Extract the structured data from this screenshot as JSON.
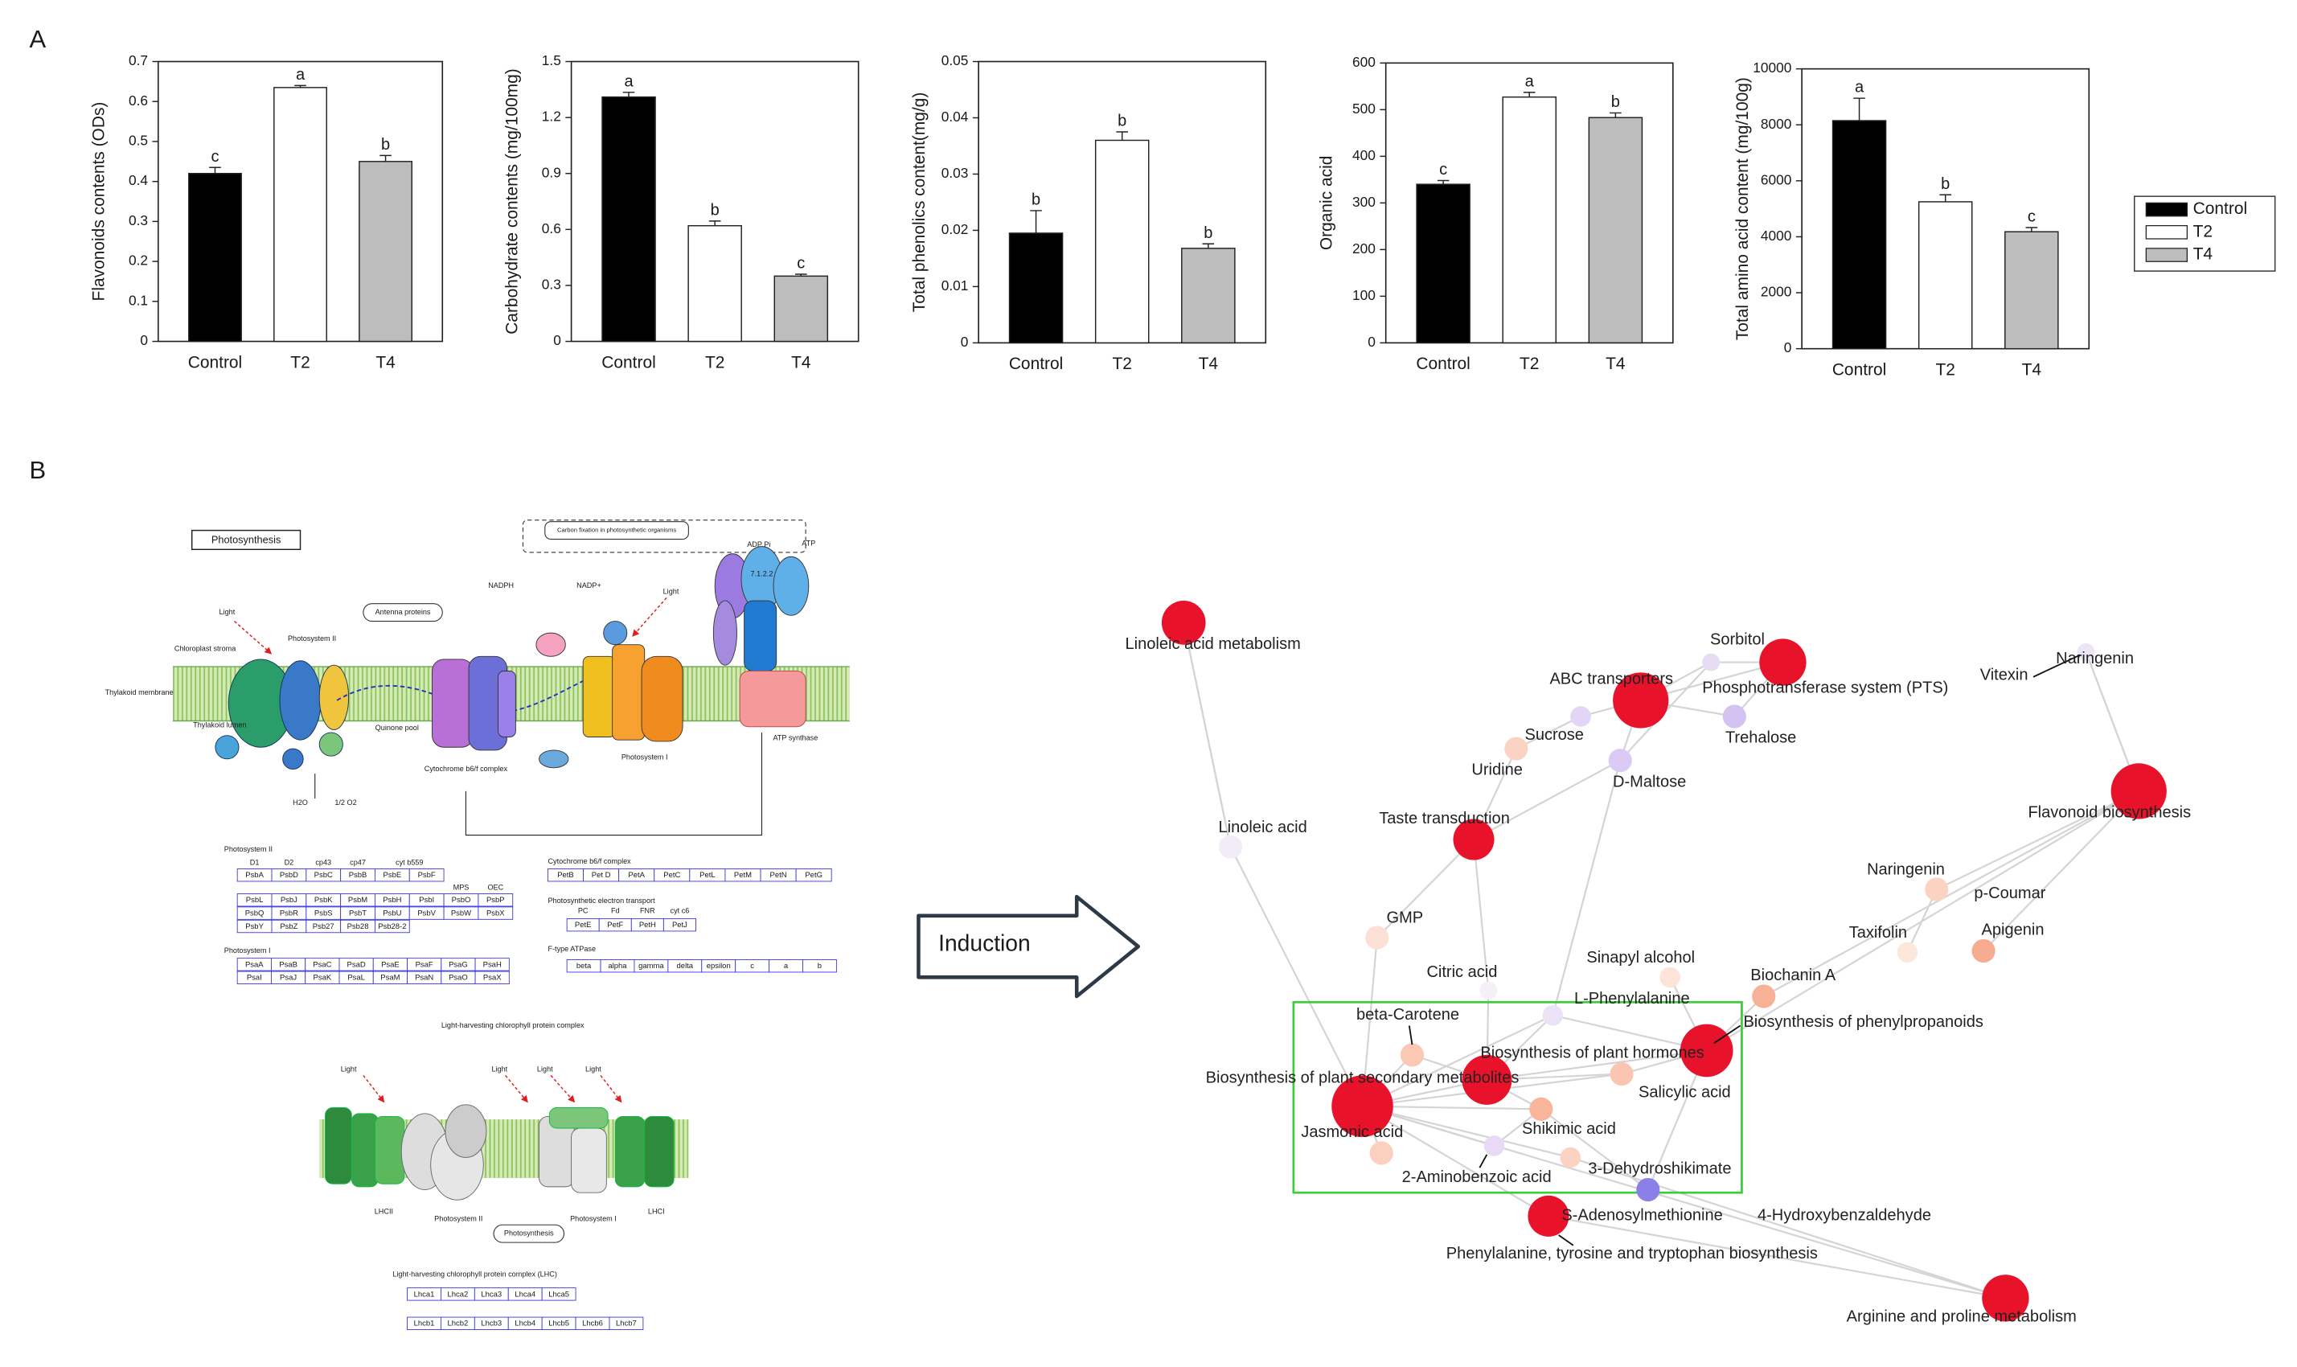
{
  "panel_labels": [
    "A",
    "B"
  ],
  "chart_data": [
    {
      "type": "bar",
      "ylabel": "Flavonoids contents (ODs)",
      "categories": [
        "Control",
        "T2",
        "T4"
      ],
      "values": [
        0.42,
        0.635,
        0.45
      ],
      "errors": [
        0.015,
        0.005,
        0.015
      ],
      "annotations": [
        "c",
        "a",
        "b"
      ],
      "colors": [
        "#000000",
        "#ffffff",
        "#bdbdbd"
      ],
      "ylim": [
        0,
        0.7
      ],
      "yticks": [
        0,
        0.1,
        0.2,
        0.3,
        0.4,
        0.5,
        0.6,
        0.7
      ]
    },
    {
      "type": "bar",
      "ylabel": "Carbohydrate contents (mg/100mg)",
      "categories": [
        "Control",
        "T2",
        "T4"
      ],
      "values": [
        1.31,
        0.62,
        0.35
      ],
      "errors": [
        0.025,
        0.025,
        0.01
      ],
      "annotations": [
        "a",
        "b",
        "c"
      ],
      "colors": [
        "#000000",
        "#ffffff",
        "#bdbdbd"
      ],
      "ylim": [
        0,
        1.5
      ],
      "yticks": [
        0,
        0.3,
        0.6,
        0.9,
        1.2,
        1.5
      ]
    },
    {
      "type": "bar",
      "ylabel": "Total phenolics content(mg/g)",
      "categories": [
        "Control",
        "T2",
        "T4"
      ],
      "values": [
        0.0195,
        0.036,
        0.0168
      ],
      "errors": [
        0.004,
        0.0015,
        0.0008
      ],
      "annotations": [
        "b",
        "b",
        "b"
      ],
      "colors": [
        "#000000",
        "#ffffff",
        "#bdbdbd"
      ],
      "ylim": [
        0,
        0.05
      ],
      "yticks": [
        0,
        0.01,
        0.02,
        0.03,
        0.04,
        0.05
      ]
    },
    {
      "type": "bar",
      "ylabel": "Organic acid",
      "categories": [
        "Control",
        "T2",
        "T4"
      ],
      "values": [
        340,
        527,
        483
      ],
      "errors": [
        8,
        10,
        10
      ],
      "annotations": [
        "c",
        "a",
        "b"
      ],
      "colors": [
        "#000000",
        "#ffffff",
        "#bdbdbd"
      ],
      "ylim": [
        0,
        600
      ],
      "yticks": [
        0,
        100,
        200,
        300,
        400,
        500,
        600
      ]
    },
    {
      "type": "bar",
      "ylabel": "Total amino acid content (mg/100g)",
      "categories": [
        "Control",
        "T2",
        "T4"
      ],
      "values": [
        8150,
        5250,
        4180
      ],
      "errors": [
        800,
        250,
        150
      ],
      "annotations": [
        "a",
        "b",
        "c"
      ],
      "colors": [
        "#000000",
        "#ffffff",
        "#bdbdbd"
      ],
      "ylim": [
        0,
        10000
      ],
      "yticks": [
        0,
        2000,
        4000,
        6000,
        8000,
        10000
      ]
    }
  ],
  "pathway": {
    "title": "Photosynthesis",
    "carbon_fixation": "Carbon fixation in photosynthetic organisms",
    "light": "Light",
    "psii": "Photosystem II",
    "psi": "Photosystem I",
    "antenna": "Antenna proteins",
    "stroma": "Chloroplast stroma",
    "membrane": "Thylakoid membrane",
    "lumen": "Thylakoid lumen",
    "cytb6f": "Cytochrome b6/f complex",
    "atp_synthase": "ATP synthase",
    "nadph": "NADPH",
    "nadp": "NADP+",
    "atp": "ATP",
    "adp": "ADP Pi",
    "h2o": "H2O",
    "o2": "1/2 O2",
    "quinone": "Quinone pool",
    "lhc_title": "Light-harvesting chlorophyll protein complex",
    "lhcii": "LHCII",
    "lhci": "LHCI",
    "tables": [
      {
        "title": "Photosystem II",
        "header": [
          "D1",
          "D2",
          "cp43",
          "cp47",
          "cyt b559"
        ],
        "header2": [
          "MPS",
          "OEC"
        ],
        "rows": [
          [
            "PsbA",
            "PsbD",
            "PsbC",
            "PsbB",
            "PsbE",
            "PsbF"
          ],
          [
            "PsbL",
            "PsbJ",
            "PsbK",
            "PsbM",
            "PsbH",
            "PsbI",
            "PsbO",
            "PsbP"
          ],
          [
            "PsbQ",
            "PsbR",
            "PsbS",
            "PsbT",
            "PsbU",
            "PsbV",
            "PsbW",
            "PsbX"
          ],
          [
            "PsbY",
            "PsbZ",
            "Psb27",
            "Psb28",
            "Psb28-2"
          ]
        ]
      },
      {
        "title": "Cytochrome b6/f complex",
        "rows": [
          [
            "PetB",
            "Pet D",
            "PetA",
            "PetC",
            "PetL",
            "PetM",
            "PetN",
            "PetG"
          ]
        ]
      },
      {
        "title": "Photosynthetic electron transport",
        "header": [
          "PC",
          "Fd",
          "FNR",
          "cyt c6"
        ],
        "rows": [
          [
            "PetE",
            "PetF",
            "PetH",
            "PetJ"
          ]
        ]
      },
      {
        "title": "Photosystem I",
        "rows": [
          [
            "PsaA",
            "PsaB",
            "PsaC",
            "PsaD",
            "PsaE",
            "PsaF",
            "PsaG",
            "PsaH"
          ],
          [
            "PsaI",
            "PsaJ",
            "PsaK",
            "PsaL",
            "PsaM",
            "PsaN",
            "PsaO",
            "PsaX"
          ]
        ]
      },
      {
        "title": "F-type ATPase",
        "rows": [
          [
            "beta",
            "alpha",
            "gamma",
            "delta",
            "epsilon",
            "c",
            "a",
            "b"
          ]
        ]
      },
      {
        "title": "Light-harvesting chlorophyll protein complex (LHC)",
        "rows": [
          [
            "Lhca1",
            "Lhca2",
            "Lhca3",
            "Lhca4",
            "Lhca5"
          ],
          [
            "Lhcb1",
            "Lhcb2",
            "Lhcb3",
            "Lhcb4",
            "Lhcb5",
            "Lhcb6",
            "Lhcb7"
          ]
        ]
      }
    ]
  },
  "induction": "Induction",
  "network": {
    "nodes": [
      {
        "label": "Linoleic acid metabolism"
      },
      {
        "label": "Linoleic acid"
      },
      {
        "label": "Sorbitol"
      },
      {
        "label": "Phosphotransferase system (PTS)"
      },
      {
        "label": "ABC transporters"
      },
      {
        "label": "Vitexin"
      },
      {
        "label": "Naringenin"
      },
      {
        "label": "Flavonoid biosynthesis"
      },
      {
        "label": "Sucrose"
      },
      {
        "label": "Trehalose"
      },
      {
        "label": "D-Maltose"
      },
      {
        "label": "Uridine"
      },
      {
        "label": "Taste transduction"
      },
      {
        "label": "GMP"
      },
      {
        "label": "Citric acid"
      },
      {
        "label": "Sinapyl alcohol"
      },
      {
        "label": "L-Phenylalanine"
      },
      {
        "label": "Naringenin"
      },
      {
        "label": "p-Coumar"
      },
      {
        "label": "Apigenin"
      },
      {
        "label": "Taxifolin"
      },
      {
        "label": "Biochanin A"
      },
      {
        "label": "Biosynthesis of phenylpropanoids"
      },
      {
        "label": "beta-Carotene"
      },
      {
        "label": "Biosynthesis of plant hormones"
      },
      {
        "label": "Biosynthesis of plant secondary metabolites"
      },
      {
        "label": "Jasmonic acid"
      },
      {
        "label": "Salicylic acid"
      },
      {
        "label": "Shikimic acid"
      },
      {
        "label": "2-Aminobenzoic acid"
      },
      {
        "label": "3-Dehydroshikimate"
      },
      {
        "label": "S-Adenosylmethionine"
      },
      {
        "label": "4-Hydroxybenzaldehyde"
      },
      {
        "label": "Phenylalanine, tyrosine and tryptophan biosynthesis"
      },
      {
        "label": "Arginine and proline metabolism"
      }
    ]
  }
}
